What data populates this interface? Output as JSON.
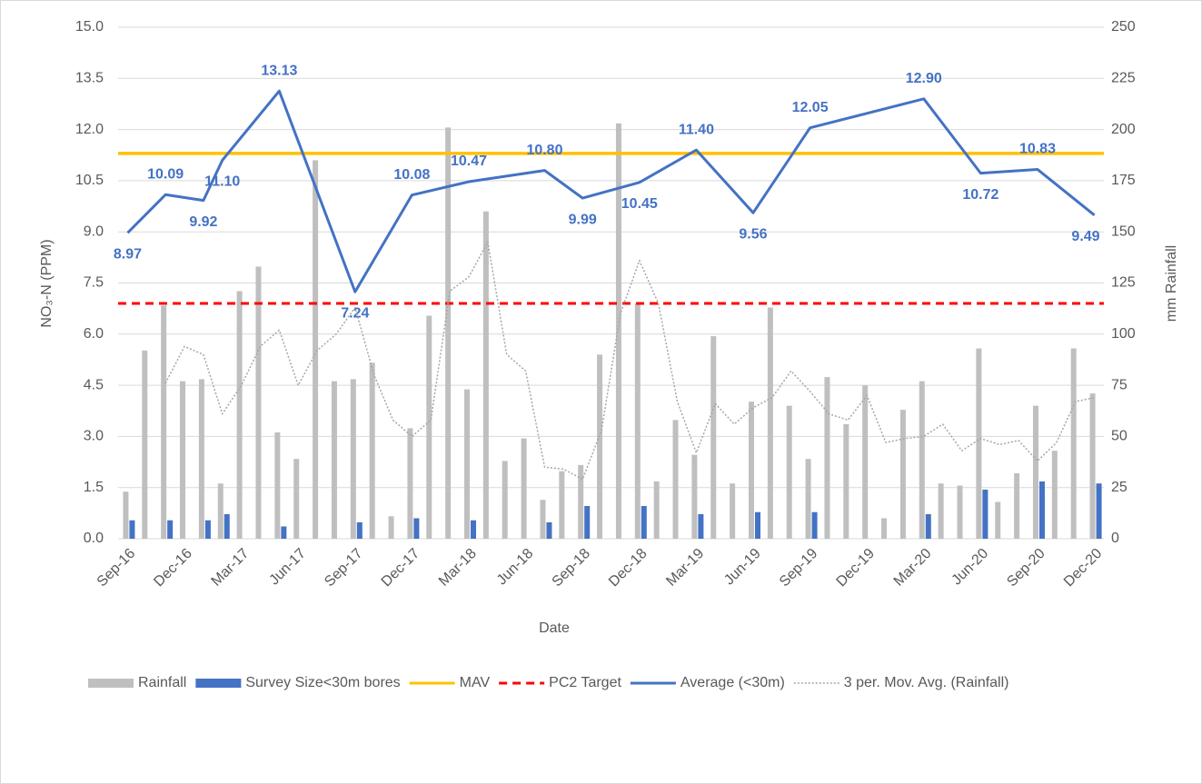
{
  "chart_data": {
    "type": "combo",
    "x_label": "Date",
    "y_label": "NO₃-N (PPM)",
    "y2_label": "mm Rainfall",
    "categories": [
      "Sep-16",
      null,
      null,
      "Dec-16",
      null,
      null,
      "Mar-17",
      null,
      null,
      "Jun-17",
      null,
      null,
      "Sep-17",
      null,
      null,
      "Dec-17",
      null,
      null,
      "Mar-18",
      null,
      null,
      "Jun-18",
      null,
      null,
      "Sep-18",
      null,
      null,
      "Dec-18",
      null,
      null,
      "Mar-19",
      null,
      null,
      "Jun-19",
      null,
      null,
      "Sep-19",
      null,
      null,
      "Dec-19",
      null,
      null,
      "Mar-20",
      null,
      null,
      "Jun-20",
      null,
      null,
      "Sep-20",
      null,
      null,
      "Dec-20"
    ],
    "ylim": [
      0,
      15
    ],
    "yticks": [
      {
        "value": 0,
        "label": "0.0"
      },
      1.5,
      {
        "value": 3,
        "label": "3.0"
      },
      4.5,
      {
        "value": 6,
        "label": "6.0"
      },
      7.5,
      {
        "value": 9,
        "label": "9.0"
      },
      10.5,
      {
        "value": 12,
        "label": "12.0"
      },
      13.5,
      {
        "value": 15,
        "label": "15.0"
      }
    ],
    "y2lim": [
      0,
      250
    ],
    "y2ticks": [
      0,
      25,
      50,
      75,
      100,
      125,
      150,
      175,
      200,
      225,
      250
    ],
    "series": [
      {
        "name": "Rainfall",
        "type": "bar",
        "axis": "y2",
        "color": "#bfbfbf",
        "values": [
          23,
          92,
          114,
          77,
          78,
          27,
          121,
          133,
          52,
          39,
          185,
          77,
          78,
          86,
          11,
          54,
          109,
          201,
          73,
          160,
          38,
          49,
          19,
          33,
          36,
          90,
          203,
          115,
          28,
          58,
          41,
          99,
          27,
          67,
          113,
          65,
          39,
          79,
          56,
          75,
          10,
          63,
          77,
          27,
          26,
          93,
          18,
          32,
          65,
          43,
          93,
          71
        ]
      },
      {
        "name": "Survey Size<30m bores",
        "type": "bar",
        "axis": "y2",
        "color": "#4472c4",
        "values": [
          9,
          null,
          9,
          null,
          9,
          12,
          null,
          null,
          6,
          null,
          null,
          null,
          8,
          null,
          null,
          10,
          null,
          null,
          9,
          null,
          null,
          null,
          8,
          null,
          16,
          null,
          null,
          16,
          null,
          null,
          12,
          null,
          null,
          13,
          null,
          null,
          13,
          null,
          null,
          null,
          null,
          null,
          12,
          null,
          null,
          24,
          null,
          null,
          28,
          null,
          null,
          27
        ]
      },
      {
        "name": "MAV",
        "type": "hline",
        "color": "#ffc000",
        "value": 11.3
      },
      {
        "name": "PC2 Target",
        "type": "hline",
        "color": "#ff0000",
        "dashed": true,
        "value": 6.9
      },
      {
        "name": "Average (<30m)",
        "type": "line",
        "color": "#4472c4",
        "connect_nulls": true,
        "values": [
          8.97,
          null,
          10.09,
          null,
          9.92,
          11.1,
          null,
          null,
          13.13,
          null,
          null,
          null,
          7.24,
          null,
          null,
          10.08,
          null,
          null,
          10.47,
          null,
          null,
          null,
          10.8,
          null,
          9.99,
          null,
          null,
          10.45,
          null,
          null,
          11.4,
          null,
          null,
          9.56,
          null,
          null,
          12.05,
          null,
          null,
          null,
          null,
          null,
          12.9,
          null,
          null,
          10.72,
          null,
          null,
          10.83,
          null,
          null,
          9.49
        ],
        "value_labels": [
          "8.97",
          null,
          "10.09",
          null,
          "9.92",
          "11.10",
          null,
          null,
          "13.13",
          null,
          null,
          null,
          "7.24",
          null,
          null,
          "10.08",
          null,
          null,
          "10.47",
          null,
          null,
          null,
          "10.80",
          null,
          "9.99",
          null,
          null,
          "10.45",
          null,
          null,
          "11.40",
          null,
          null,
          "9.56",
          null,
          null,
          "12.05",
          null,
          null,
          null,
          null,
          null,
          "12.90",
          null,
          null,
          "10.72",
          null,
          null,
          "10.83",
          null,
          null,
          "9.49"
        ]
      },
      {
        "name": "3 per. Mov. Avg. (Rainfall)",
        "type": "dotted",
        "axis": "y2",
        "color": "#a6a6a6",
        "values": [
          null,
          null,
          76,
          94,
          90,
          61,
          75,
          94,
          102,
          75,
          92,
          100,
          113,
          80,
          58,
          50,
          58,
          121,
          128,
          145,
          90,
          82,
          35,
          34,
          29,
          53,
          110,
          136,
          115,
          67,
          42,
          66,
          56,
          64,
          69,
          82,
          72,
          61,
          58,
          70,
          47,
          49,
          50,
          56,
          43,
          49,
          46,
          48,
          38,
          47,
          67,
          69
        ]
      }
    ]
  }
}
